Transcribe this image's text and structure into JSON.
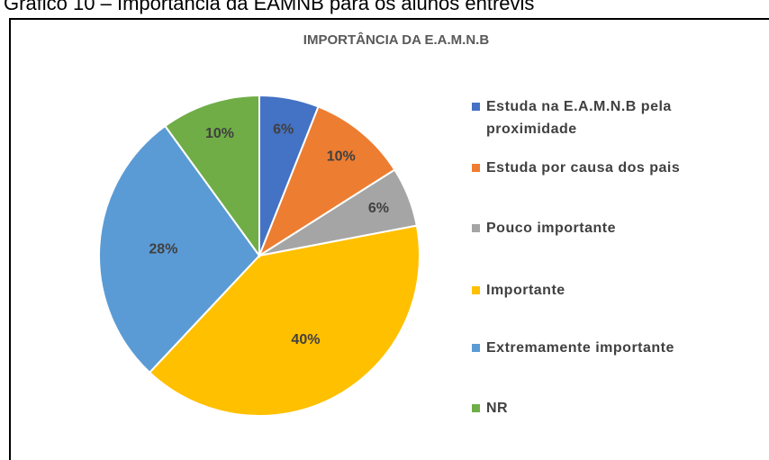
{
  "caption": "Gráfico 10 – Importância da EAMNB para os alunos entrevis",
  "chart_data": {
    "type": "pie",
    "title": "IMPORTÂNCIA DA E.A.M.N.B",
    "categories": [
      "Estuda na E.A.M.N.B pela proximidade",
      "Estuda por  causa dos pais",
      "Pouco importante",
      "Importante",
      "Extremamente importante",
      "NR"
    ],
    "values": [
      6,
      10,
      6,
      40,
      28,
      10
    ],
    "value_labels": [
      "6%",
      "10%",
      "6%",
      "40%",
      "28%",
      "10%"
    ],
    "colors": [
      "#4472c4",
      "#ed7d31",
      "#a5a5a5",
      "#ffc000",
      "#5b9bd5",
      "#70ad47"
    ],
    "legend": "right"
  }
}
